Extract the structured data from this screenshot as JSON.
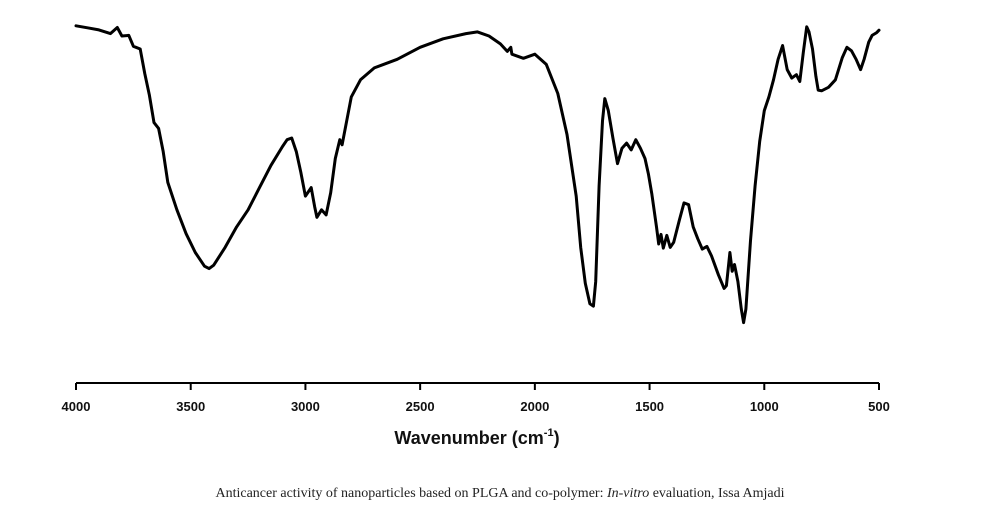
{
  "chart_data": {
    "type": "line",
    "xlabel": "Wavenumber (cm",
    "xlabel_sup": "-1",
    "xlabel_end": ")",
    "xlim": [
      4000,
      500
    ],
    "ylim": [
      0,
      100
    ],
    "xticks": [
      "4000",
      "3500",
      "3000",
      "2500",
      "2000",
      "1500",
      "1000",
      "500"
    ],
    "y_axis_shown": false,
    "grid": false,
    "series": [
      {
        "color": "#000000",
        "points": [
          [
            4000,
            94.8
          ],
          [
            3950,
            94.2
          ],
          [
            3900,
            93.6
          ],
          [
            3850,
            92.5
          ],
          [
            3820,
            94.3
          ],
          [
            3800,
            91.8
          ],
          [
            3770,
            92.0
          ],
          [
            3750,
            88.8
          ],
          [
            3720,
            88.0
          ],
          [
            3700,
            80.8
          ],
          [
            3680,
            74.5
          ],
          [
            3660,
            66.5
          ],
          [
            3640,
            64.8
          ],
          [
            3620,
            58.0
          ],
          [
            3600,
            49.0
          ],
          [
            3560,
            41.0
          ],
          [
            3520,
            34.0
          ],
          [
            3480,
            28.5
          ],
          [
            3440,
            24.5
          ],
          [
            3420,
            23.8
          ],
          [
            3400,
            24.8
          ],
          [
            3350,
            30.0
          ],
          [
            3300,
            36.0
          ],
          [
            3250,
            41.0
          ],
          [
            3200,
            47.5
          ],
          [
            3150,
            54.0
          ],
          [
            3100,
            59.5
          ],
          [
            3080,
            61.5
          ],
          [
            3060,
            62.0
          ],
          [
            3040,
            58.0
          ],
          [
            3020,
            52.0
          ],
          [
            3000,
            45.0
          ],
          [
            2975,
            47.5
          ],
          [
            2960,
            42.0
          ],
          [
            2950,
            38.8
          ],
          [
            2930,
            41.0
          ],
          [
            2910,
            39.5
          ],
          [
            2890,
            46.0
          ],
          [
            2870,
            56.0
          ],
          [
            2850,
            61.5
          ],
          [
            2840,
            60.0
          ],
          [
            2820,
            67.0
          ],
          [
            2800,
            74.0
          ],
          [
            2760,
            79.0
          ],
          [
            2700,
            82.5
          ],
          [
            2600,
            85.0
          ],
          [
            2500,
            88.5
          ],
          [
            2400,
            91.0
          ],
          [
            2300,
            92.5
          ],
          [
            2250,
            93.0
          ],
          [
            2200,
            91.8
          ],
          [
            2150,
            89.5
          ],
          [
            2120,
            87.3
          ],
          [
            2105,
            88.5
          ],
          [
            2100,
            86.5
          ],
          [
            2050,
            85.3
          ],
          [
            2000,
            86.5
          ],
          [
            1950,
            83.5
          ],
          [
            1900,
            75.0
          ],
          [
            1860,
            63.0
          ],
          [
            1820,
            45.0
          ],
          [
            1800,
            30.0
          ],
          [
            1780,
            19.5
          ],
          [
            1760,
            13.5
          ],
          [
            1745,
            12.8
          ],
          [
            1735,
            20.0
          ],
          [
            1720,
            48.0
          ],
          [
            1705,
            67.0
          ],
          [
            1695,
            73.5
          ],
          [
            1680,
            70.0
          ],
          [
            1660,
            62.0
          ],
          [
            1640,
            54.5
          ],
          [
            1620,
            59.0
          ],
          [
            1600,
            60.5
          ],
          [
            1580,
            58.5
          ],
          [
            1560,
            61.5
          ],
          [
            1540,
            59.0
          ],
          [
            1520,
            56.0
          ],
          [
            1505,
            51.5
          ],
          [
            1490,
            45.5
          ],
          [
            1470,
            36.0
          ],
          [
            1460,
            31.0
          ],
          [
            1450,
            33.8
          ],
          [
            1440,
            29.8
          ],
          [
            1425,
            33.5
          ],
          [
            1410,
            30.0
          ],
          [
            1395,
            31.5
          ],
          [
            1370,
            38.0
          ],
          [
            1350,
            43.0
          ],
          [
            1330,
            42.5
          ],
          [
            1310,
            36.0
          ],
          [
            1290,
            32.5
          ],
          [
            1270,
            29.5
          ],
          [
            1250,
            30.3
          ],
          [
            1230,
            27.5
          ],
          [
            1200,
            22.0
          ],
          [
            1175,
            18.0
          ],
          [
            1165,
            18.8
          ],
          [
            1150,
            28.5
          ],
          [
            1140,
            23.0
          ],
          [
            1130,
            25.0
          ],
          [
            1115,
            20.0
          ],
          [
            1100,
            12.0
          ],
          [
            1090,
            8.0
          ],
          [
            1080,
            12.0
          ],
          [
            1060,
            32.0
          ],
          [
            1040,
            48.0
          ],
          [
            1020,
            61.0
          ],
          [
            1000,
            70.0
          ],
          [
            980,
            74.0
          ],
          [
            960,
            79.0
          ],
          [
            940,
            85.0
          ],
          [
            920,
            89.0
          ],
          [
            900,
            82.0
          ],
          [
            880,
            79.5
          ],
          [
            860,
            80.5
          ],
          [
            845,
            78.5
          ],
          [
            830,
            87.0
          ],
          [
            815,
            94.5
          ],
          [
            805,
            93.0
          ],
          [
            790,
            88.0
          ],
          [
            775,
            80.0
          ],
          [
            765,
            76.0
          ],
          [
            750,
            75.8
          ],
          [
            720,
            76.8
          ],
          [
            690,
            79.0
          ],
          [
            660,
            85.5
          ],
          [
            640,
            88.5
          ],
          [
            620,
            87.5
          ],
          [
            600,
            85.0
          ],
          [
            580,
            82.0
          ],
          [
            565,
            85.0
          ],
          [
            545,
            90.0
          ],
          [
            530,
            92.0
          ],
          [
            510,
            92.8
          ],
          [
            500,
            93.5
          ]
        ]
      }
    ]
  },
  "caption": {
    "text_before": "Anticancer activity of nanoparticles based on PLGA and co-polymer: ",
    "text_italic": "In-vitro",
    "text_after": " evaluation, Issa Amjadi"
  }
}
